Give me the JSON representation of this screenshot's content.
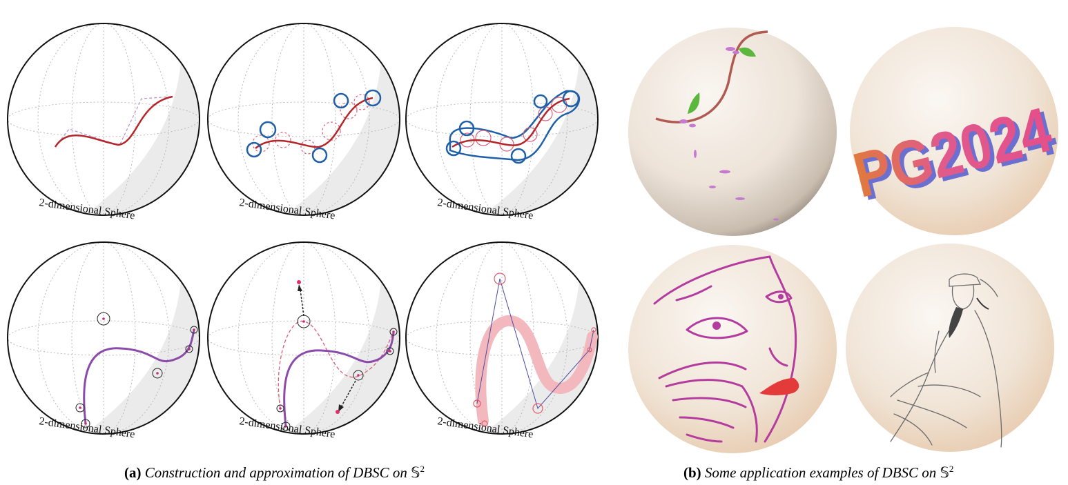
{
  "panel_a": {
    "sphere_label": "2-dimensional Sphere",
    "caption": {
      "tag": "(a)",
      "text": "Construction and approximation of DBSC on ",
      "symbol": "𝕊",
      "sup": "2"
    }
  },
  "panel_b": {
    "logo_text": "PG2024",
    "caption": {
      "tag": "(b)",
      "text": "Some application examples of DBSC on ",
      "symbol": "𝕊",
      "sup": "2"
    }
  },
  "colors": {
    "curve_red": "#b5262b",
    "curve_purple": "#8b4ba8",
    "circle_blue": "#1f5fa8",
    "circle_pink": "#d9607a",
    "band_pink": "#f2b8bd",
    "sphere_cream": "#efe6dc"
  }
}
